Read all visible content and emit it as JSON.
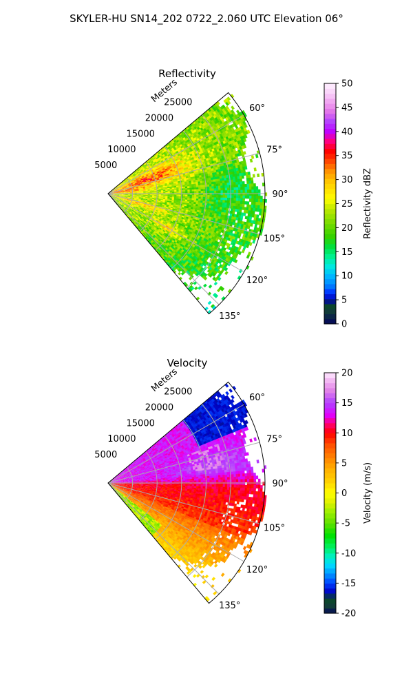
{
  "figure": {
    "title": "SKYLER-HU  SN14_202  0722_2.060 UTC Elevation 06°"
  },
  "chart_data": [
    {
      "type": "heatmap",
      "subtype": "polar-sector",
      "title": "Reflectivity",
      "radial_label": "Meters",
      "radial_ticks": [
        "5000",
        "10000",
        "15000",
        "20000",
        "25000"
      ],
      "radial_tick_values": [
        5000,
        10000,
        15000,
        20000,
        25000
      ],
      "angle_ticks": [
        "60°",
        "75°",
        "90°",
        "105°",
        "120°",
        "135°"
      ],
      "angle_tick_values": [
        60,
        75,
        90,
        105,
        120,
        135
      ],
      "angle_range": [
        50,
        140
      ],
      "range_max": 32000,
      "grid": true,
      "colorbar": {
        "label": "Reflectivity dBZ",
        "range": [
          0,
          50
        ],
        "ticks": [
          "0",
          "5",
          "10",
          "15",
          "20",
          "25",
          "30",
          "35",
          "40",
          "45",
          "50"
        ],
        "tick_values": [
          0,
          5,
          10,
          15,
          20,
          25,
          30,
          35,
          40,
          45,
          50
        ]
      },
      "field_summary": "mostly 20–30 dBZ with a band of 33–38 dBZ near the radar along 60°–80°, lower 15–22 dBZ toward the outer range east and southeast"
    },
    {
      "type": "heatmap",
      "subtype": "polar-sector",
      "title": "Velocity",
      "radial_label": "Meters",
      "radial_ticks": [
        "5000",
        "10000",
        "15000",
        "20000",
        "25000"
      ],
      "radial_tick_values": [
        5000,
        10000,
        15000,
        20000,
        25000
      ],
      "angle_ticks": [
        "60°",
        "75°",
        "90°",
        "105°",
        "120°",
        "135°"
      ],
      "angle_tick_values": [
        60,
        75,
        90,
        105,
        120,
        135
      ],
      "angle_range": [
        50,
        140
      ],
      "range_max": 32000,
      "grid": true,
      "colorbar": {
        "label": "Velocity (m/s)",
        "range": [
          -20,
          20
        ],
        "ticks": [
          "-20",
          "-15",
          "-10",
          "-5",
          "0",
          "5",
          "10",
          "15",
          "20"
        ],
        "tick_values": [
          -20,
          -15,
          -10,
          -5,
          0,
          5,
          10,
          15,
          20
        ]
      },
      "field_summary": "about 13–16 m/s for azimuths 50°–85°, ~17 m/s patch near 75°–85° at mid range, -15 to -20 m/s aliased area near 55°–68° at far range, 9–11 m/s around 92°–112°, 3–8 m/s around 112°–135°, -3 m/s strip near 128°–136° close in"
    }
  ],
  "colors": {
    "grid": "#aaaaaa",
    "frame": "#000000"
  }
}
